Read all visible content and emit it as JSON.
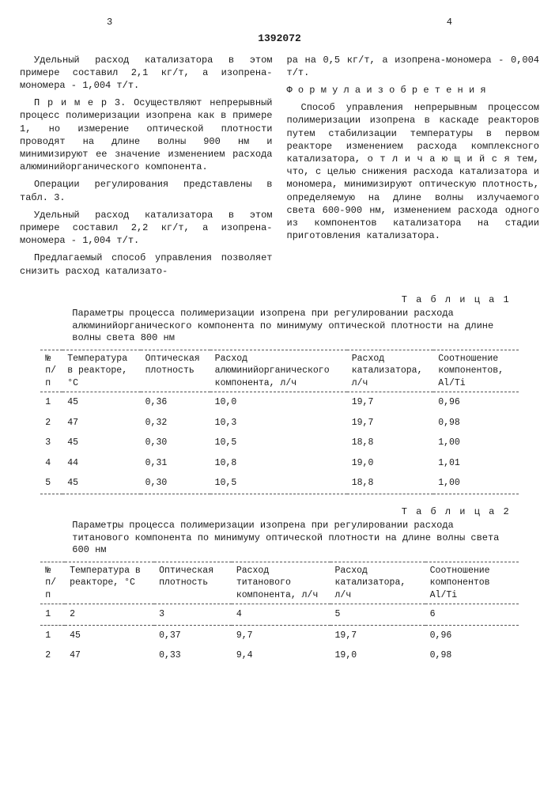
{
  "header": {
    "page_left": "3",
    "page_right": "4",
    "doc_id": "1392072"
  },
  "left_col": {
    "p1": "Удельный расход катализатора в этом примере составил 2,1 кг/т, а изопрена-мономера - 1,004 т/т.",
    "p2": "П р и м е р  3. Осуществляют непрерывный процесс полимеризации изопрена как в примере 1, но измерение оптической плотности проводят на длине волны 900 нм и минимизируют ее значение изменением расхода алюминийорганического компонента.",
    "p3": "Операции регулирования представлены в табл. 3.",
    "p4": "Удельный расход катализатора в этом примере составил 2,2 кг/т, а изопрена-мономера - 1,004 т/т.",
    "p5": "Предлагаемый способ управления позволяет снизить расход катализато-"
  },
  "right_col": {
    "p1": "ра на 0,5 кг/т, а изопрена-мономера - 0,004 т/т.",
    "section_title": "Ф о р м у л а    и з о б р е т е н и я",
    "p2": "Способ управления непрерывным процессом полимеризации изопрена в каскаде реакторов путем стабилизации температуры в первом реакторе изменением расхода комплексного катализатора, о т л и ч а ю щ и й с я  тем, что, с целью снижения расхода катализатора и мономера, минимизируют оптическую плотность, определяемую на длине волны излучаемого света 600-900 нм, изменением расхода одного из компонентов катализатора на стадии приготовления катализатора."
  },
  "table1": {
    "label": "Т а б л и ц а 1",
    "caption": "Параметры процесса полимеризации изопрена при регулировании расхода алюминийорганического компонента по минимуму оптической плотности на длине волны света 800 нм",
    "headers": [
      "№ п/п",
      "Температура в реакторе, °C",
      "Оптическая плотность",
      "Расход алюминийорганического компонента, л/ч",
      "Расход катализатора, л/ч",
      "Соотношение компонентов, Al/Ti"
    ],
    "rows": [
      [
        "1",
        "45",
        "0,36",
        "10,0",
        "19,7",
        "0,96"
      ],
      [
        "2",
        "47",
        "0,32",
        "10,3",
        "19,7",
        "0,98"
      ],
      [
        "3",
        "45",
        "0,30",
        "10,5",
        "18,8",
        "1,00"
      ],
      [
        "4",
        "44",
        "0,31",
        "10,8",
        "19,0",
        "1,01"
      ],
      [
        "5",
        "45",
        "0,30",
        "10,5",
        "18,8",
        "1,00"
      ]
    ]
  },
  "table2": {
    "label": "Т а б л и ц а 2",
    "caption": "Параметры процесса полимеризации изопрена при регулировании расхода титанового компонента по минимуму оптической плотности на длине волны света 600 нм",
    "headers": [
      "№ п/п",
      "Температура в реакторе, °C",
      "Оптическая плотность",
      "Расход титанового компонента, л/ч",
      "Расход катализатора, л/ч",
      "Соотношение компонентов Al/Ti"
    ],
    "num_row": [
      "1",
      "2",
      "3",
      "4",
      "5",
      "6"
    ],
    "rows": [
      [
        "1",
        "45",
        "0,37",
        "9,7",
        "19,7",
        "0,96"
      ],
      [
        "2",
        "47",
        "0,33",
        "9,4",
        "19,0",
        "0,98"
      ]
    ]
  }
}
